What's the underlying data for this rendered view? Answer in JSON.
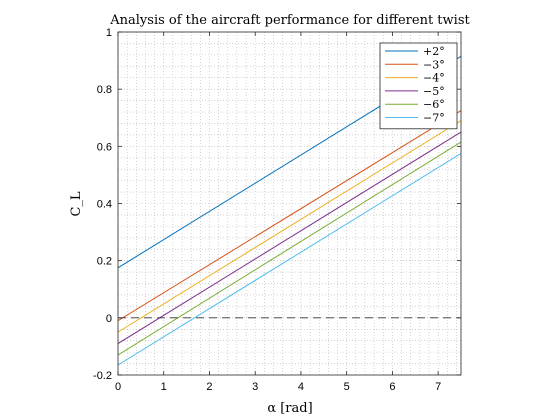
{
  "chart_data": {
    "type": "line",
    "title": "Analysis of the aircraft performance for different twist",
    "xlabel": "α [rad]",
    "ylabel": "C_L",
    "xlim": [
      0,
      7.5
    ],
    "ylim": [
      -0.2,
      1
    ],
    "x_ticks": [
      0,
      1,
      2,
      3,
      4,
      5,
      6,
      7
    ],
    "y_ticks": [
      -0.2,
      0,
      0.2,
      0.4,
      0.6,
      0.8,
      1
    ],
    "x_tick_labels": [
      "0",
      "1",
      "2",
      "3",
      "4",
      "5",
      "6",
      "7"
    ],
    "y_tick_labels": [
      "-0.2",
      "0",
      "0.2",
      "0.4",
      "0.6",
      "0.8",
      "1"
    ],
    "grid": "minor dotted",
    "legend_position": "top-right",
    "reference_line": {
      "y": 0,
      "style": "dashed"
    },
    "series": [
      {
        "name": "+2°",
        "color": "#0072BD",
        "x": [
          0,
          7.5
        ],
        "y": [
          0.175,
          0.915
        ]
      },
      {
        "name": "−3°",
        "color": "#D95319",
        "x": [
          0,
          7.5
        ],
        "y": [
          -0.01,
          0.725
        ]
      },
      {
        "name": "−4°",
        "color": "#EDB120",
        "x": [
          0,
          7.5
        ],
        "y": [
          -0.05,
          0.69
        ]
      },
      {
        "name": "−5°",
        "color": "#7E2F8E",
        "x": [
          0,
          7.5
        ],
        "y": [
          -0.09,
          0.65
        ]
      },
      {
        "name": "−6°",
        "color": "#77AC30",
        "x": [
          0,
          7.5
        ],
        "y": [
          -0.13,
          0.615
        ]
      },
      {
        "name": "−7°",
        "color": "#4DBEEE",
        "x": [
          0,
          7.5
        ],
        "y": [
          -0.165,
          0.575
        ]
      }
    ]
  }
}
